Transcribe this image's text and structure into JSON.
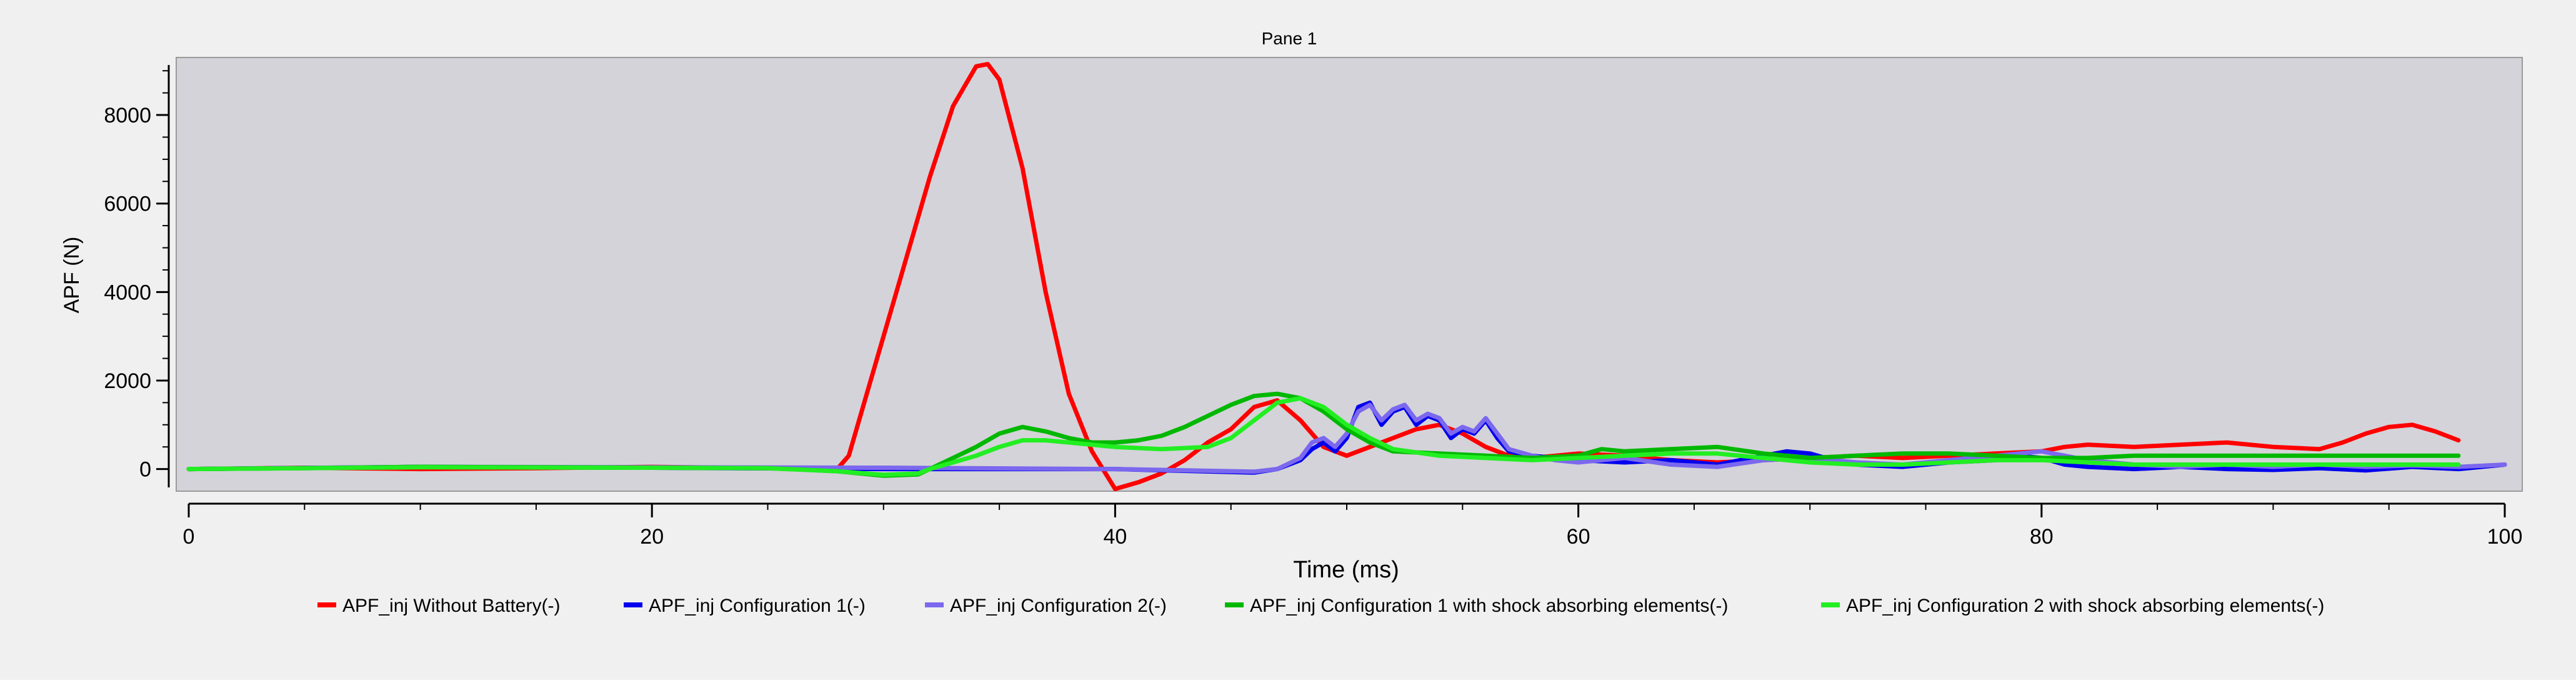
{
  "pane_title": "Pane 1",
  "chart_data": {
    "type": "line",
    "title": "Pane 1",
    "xlabel": "Time (ms)",
    "ylabel": "APF (N)",
    "xlim": [
      0,
      100
    ],
    "ylim": [
      -500,
      9300
    ],
    "x_ticks": [
      0,
      20,
      40,
      60,
      80,
      100
    ],
    "y_ticks": [
      0,
      2000,
      4000,
      6000,
      8000
    ],
    "grid": false,
    "legend_position": "bottom",
    "colors": {
      "outer_background": "#f0f0f0",
      "plot_background": "#d4d3d9",
      "axis": "#000000"
    },
    "series": [
      {
        "name": "APF_inj Without Battery(-)",
        "color": "#ff0000",
        "x": [
          0,
          5,
          10,
          15,
          20,
          25,
          28,
          28.5,
          29,
          30,
          31,
          32,
          33,
          34,
          34.5,
          35,
          36,
          37,
          38,
          39,
          40,
          41,
          42,
          43,
          44,
          45,
          46,
          47,
          48,
          49,
          50,
          51,
          52,
          53,
          54,
          55,
          56,
          57,
          58,
          60,
          62,
          64,
          66,
          68,
          70,
          72,
          74,
          76,
          78,
          80,
          81,
          82,
          84,
          86,
          88,
          90,
          92,
          93,
          94,
          95,
          96,
          97,
          98
        ],
        "y": [
          0,
          30,
          0,
          20,
          50,
          20,
          0,
          300,
          1200,
          3000,
          4800,
          6600,
          8200,
          9100,
          9150,
          8800,
          6800,
          4000,
          1700,
          400,
          -450,
          -300,
          -100,
          200,
          600,
          900,
          1400,
          1550,
          1100,
          500,
          300,
          500,
          700,
          900,
          1000,
          800,
          500,
          300,
          250,
          350,
          300,
          200,
          150,
          200,
          250,
          300,
          250,
          300,
          350,
          400,
          500,
          550,
          500,
          550,
          600,
          500,
          450,
          600,
          800,
          950,
          1000,
          850,
          650
        ]
      },
      {
        "name": "APF_inj Configuration 1(-)",
        "color": "#0000ee",
        "x": [
          0,
          10,
          20,
          30,
          40,
          46,
          47,
          48,
          48.5,
          49,
          49.5,
          50,
          50.5,
          51,
          51.5,
          52,
          52.5,
          53,
          53.5,
          54,
          54.5,
          55,
          55.5,
          56,
          56.5,
          57,
          58,
          59,
          60,
          62,
          64,
          66,
          68,
          69,
          70,
          71,
          72,
          74,
          76,
          78,
          79,
          80,
          81,
          82,
          84,
          86,
          88,
          90,
          92,
          94,
          96,
          98,
          100
        ],
        "y": [
          0,
          50,
          30,
          0,
          0,
          -80,
          0,
          200,
          450,
          600,
          400,
          700,
          1400,
          1500,
          1000,
          1300,
          1400,
          1000,
          1200,
          1100,
          700,
          900,
          800,
          1100,
          700,
          400,
          300,
          250,
          200,
          150,
          200,
          100,
          300,
          400,
          350,
          200,
          100,
          50,
          150,
          200,
          300,
          250,
          100,
          50,
          0,
          50,
          0,
          -20,
          20,
          -30,
          50,
          0,
          100
        ]
      },
      {
        "name": "APF_inj Configuration 2(-)",
        "color": "#7b68ee",
        "x": [
          0,
          10,
          20,
          30,
          40,
          46,
          47,
          48,
          48.5,
          49,
          49.5,
          50,
          50.5,
          51,
          51.5,
          52,
          52.5,
          53,
          53.5,
          54,
          54.5,
          55,
          55.5,
          56,
          56.5,
          57,
          58,
          59,
          60,
          62,
          64,
          66,
          68,
          70,
          72,
          74,
          76,
          78,
          80,
          82,
          84,
          86,
          88,
          90,
          92,
          94,
          96,
          98,
          100
        ],
        "y": [
          0,
          50,
          40,
          30,
          0,
          -60,
          0,
          250,
          600,
          700,
          500,
          800,
          1300,
          1450,
          1100,
          1350,
          1450,
          1100,
          1250,
          1150,
          800,
          950,
          850,
          1150,
          800,
          450,
          300,
          200,
          150,
          250,
          100,
          50,
          200,
          250,
          150,
          100,
          200,
          300,
          400,
          200,
          100,
          50,
          100,
          50,
          100,
          50,
          80,
          50,
          100
        ]
      },
      {
        "name": "APF_inj Configuration 1 with shock absorbing elements(-)",
        "color": "#00b800",
        "x": [
          0,
          5,
          10,
          20,
          25,
          28,
          30,
          31.5,
          32,
          33,
          34,
          35,
          36,
          37,
          38,
          39,
          40,
          41,
          42,
          43,
          44,
          45,
          46,
          47,
          48,
          49,
          50,
          51,
          52,
          54,
          56,
          58,
          60,
          61,
          62,
          64,
          66,
          68,
          70,
          72,
          74,
          76,
          78,
          80,
          82,
          84,
          86,
          88,
          90,
          92,
          94,
          96,
          98
        ],
        "y": [
          0,
          20,
          50,
          30,
          20,
          -50,
          -150,
          -120,
          0,
          250,
          500,
          800,
          950,
          850,
          700,
          600,
          600,
          650,
          750,
          950,
          1200,
          1450,
          1650,
          1700,
          1600,
          1300,
          900,
          600,
          400,
          350,
          300,
          250,
          300,
          450,
          400,
          450,
          500,
          350,
          250,
          300,
          350,
          350,
          300,
          250,
          250,
          300,
          300,
          300,
          300,
          300,
          300,
          300,
          300
        ]
      },
      {
        "name": "APF_inj Configuration 2 with shock absorbing elements(-)",
        "color": "#22ee22",
        "x": [
          0,
          5,
          10,
          20,
          25,
          28,
          30,
          31.5,
          32,
          33,
          34,
          35,
          36,
          37,
          38,
          39,
          40,
          42,
          44,
          45,
          46,
          47,
          48,
          49,
          50,
          51,
          52,
          54,
          56,
          58,
          60,
          62,
          64,
          66,
          68,
          70,
          72,
          74,
          76,
          78,
          80,
          82,
          84,
          86,
          88,
          90,
          92,
          94,
          96,
          98
        ],
        "y": [
          0,
          20,
          40,
          30,
          20,
          -50,
          -130,
          -100,
          0,
          150,
          300,
          500,
          650,
          650,
          600,
          550,
          500,
          450,
          500,
          700,
          1100,
          1500,
          1600,
          1400,
          1000,
          700,
          450,
          300,
          250,
          200,
          250,
          300,
          350,
          350,
          250,
          150,
          100,
          100,
          150,
          200,
          200,
          150,
          100,
          100,
          100,
          100,
          100,
          100,
          100,
          100
        ]
      }
    ]
  }
}
